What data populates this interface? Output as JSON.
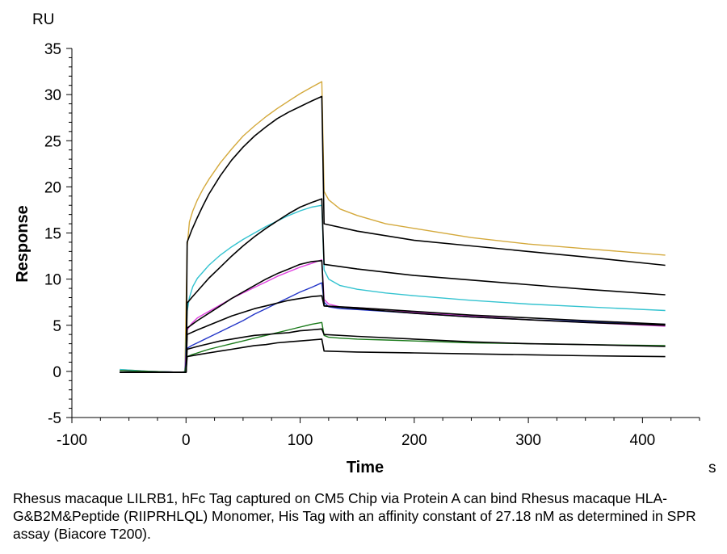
{
  "chart_data": {
    "type": "line",
    "title": "",
    "xlabel": "Time",
    "ylabel": "Response",
    "x_unit": "s",
    "y_unit": "RU",
    "xlim": [
      -100,
      450
    ],
    "ylim": [
      -5,
      35
    ],
    "x_ticks": [
      -100,
      0,
      100,
      200,
      300,
      400
    ],
    "y_ticks": [
      -5,
      0,
      5,
      10,
      15,
      20,
      25,
      30,
      35
    ],
    "grid": false,
    "legend": "none",
    "series": [
      {
        "color": "#d4a93c",
        "kind": "measured",
        "x": [
          -58,
          -30,
          -5,
          -1,
          1,
          3,
          6,
          10,
          15,
          20,
          30,
          40,
          50,
          60,
          70,
          80,
          90,
          100,
          110,
          119,
          121,
          125,
          135,
          150,
          175,
          200,
          250,
          300,
          350,
          420
        ],
        "y": [
          0.2,
          0.0,
          -0.1,
          -0.05,
          13.5,
          16.2,
          17.4,
          18.6,
          19.8,
          20.8,
          22.6,
          24.1,
          25.5,
          26.6,
          27.6,
          28.5,
          29.3,
          30.1,
          30.8,
          31.4,
          19.5,
          18.6,
          17.6,
          16.9,
          16.0,
          15.5,
          14.5,
          13.8,
          13.3,
          12.6
        ]
      },
      {
        "color": "#34c3d0",
        "kind": "measured",
        "x": [
          -58,
          -30,
          -5,
          -1,
          1,
          3,
          6,
          10,
          15,
          20,
          30,
          40,
          50,
          60,
          70,
          80,
          90,
          100,
          110,
          119,
          121,
          125,
          135,
          150,
          175,
          200,
          250,
          300,
          350,
          420
        ],
        "y": [
          0.2,
          0.0,
          -0.1,
          -0.05,
          6.5,
          8.0,
          9.2,
          10.1,
          10.8,
          11.5,
          12.6,
          13.5,
          14.3,
          15.0,
          15.7,
          16.3,
          16.9,
          17.4,
          17.8,
          18.0,
          11.0,
          10.0,
          9.3,
          8.9,
          8.5,
          8.2,
          7.7,
          7.3,
          7.0,
          6.6
        ]
      },
      {
        "color": "#e040e0",
        "kind": "measured",
        "x": [
          -58,
          -30,
          -5,
          -1,
          1,
          5,
          10,
          20,
          30,
          40,
          50,
          60,
          70,
          80,
          90,
          100,
          110,
          119,
          121,
          125,
          135,
          150,
          175,
          200,
          250,
          300,
          350,
          420
        ],
        "y": [
          0.1,
          0.0,
          -0.1,
          -0.05,
          4.5,
          5.2,
          5.8,
          6.5,
          7.2,
          7.9,
          8.5,
          9.1,
          9.7,
          10.3,
          10.8,
          11.3,
          11.7,
          12.1,
          7.8,
          7.3,
          7.0,
          6.9,
          6.7,
          6.4,
          6.0,
          5.6,
          5.3,
          4.9
        ]
      },
      {
        "color": "#2436c8",
        "kind": "measured",
        "x": [
          -58,
          -30,
          -5,
          -1,
          1,
          5,
          10,
          20,
          30,
          40,
          50,
          60,
          70,
          80,
          90,
          100,
          110,
          119,
          121,
          125,
          135,
          150,
          175,
          200,
          250,
          300,
          350,
          420
        ],
        "y": [
          0.1,
          0.0,
          -0.1,
          -0.05,
          2.5,
          2.8,
          3.1,
          3.7,
          4.3,
          4.9,
          5.5,
          6.2,
          6.8,
          7.4,
          8.0,
          8.6,
          9.1,
          9.6,
          7.5,
          7.0,
          6.8,
          6.7,
          6.5,
          6.3,
          5.9,
          5.6,
          5.4,
          5.1
        ]
      },
      {
        "color": "#1a7a1a",
        "kind": "measured",
        "x": [
          -58,
          -30,
          -5,
          -1,
          1,
          5,
          10,
          20,
          30,
          40,
          50,
          60,
          70,
          80,
          90,
          100,
          110,
          119,
          121,
          125,
          135,
          150,
          175,
          200,
          250,
          300,
          350,
          420
        ],
        "y": [
          0.1,
          0.0,
          -0.1,
          -0.05,
          1.6,
          1.8,
          2.0,
          2.4,
          2.7,
          3.0,
          3.3,
          3.6,
          3.9,
          4.2,
          4.5,
          4.8,
          5.1,
          5.3,
          3.9,
          3.7,
          3.6,
          3.5,
          3.4,
          3.3,
          3.1,
          3.0,
          2.9,
          2.8
        ]
      },
      {
        "color": "#000000",
        "kind": "fit",
        "x": [
          -58,
          -30,
          -5,
          0,
          1,
          5,
          10,
          15,
          20,
          30,
          40,
          50,
          60,
          70,
          80,
          90,
          100,
          110,
          119,
          121,
          150,
          200,
          250,
          300,
          350,
          420
        ],
        "y": [
          -0.1,
          -0.1,
          -0.1,
          -0.1,
          14.0,
          15.3,
          16.7,
          18.0,
          19.2,
          21.2,
          22.9,
          24.3,
          25.5,
          26.5,
          27.4,
          28.1,
          28.7,
          29.3,
          29.8,
          16.0,
          15.2,
          14.2,
          13.6,
          13.0,
          12.4,
          11.5
        ]
      },
      {
        "color": "#000000",
        "kind": "fit",
        "x": [
          -58,
          -30,
          -5,
          0,
          1,
          5,
          10,
          20,
          30,
          40,
          50,
          60,
          70,
          80,
          90,
          100,
          110,
          119,
          121,
          150,
          200,
          250,
          300,
          350,
          420
        ],
        "y": [
          -0.1,
          -0.1,
          -0.1,
          -0.1,
          7.4,
          8.0,
          8.7,
          10.1,
          11.3,
          12.5,
          13.6,
          14.6,
          15.5,
          16.3,
          17.1,
          17.8,
          18.3,
          18.7,
          11.6,
          11.1,
          10.4,
          9.9,
          9.4,
          8.9,
          8.3
        ]
      },
      {
        "color": "#000000",
        "kind": "fit",
        "x": [
          -58,
          -30,
          -5,
          0,
          1,
          10,
          20,
          30,
          40,
          50,
          60,
          70,
          80,
          90,
          100,
          110,
          119,
          121,
          150,
          200,
          250,
          300,
          350,
          420
        ],
        "y": [
          -0.1,
          -0.1,
          -0.1,
          -0.1,
          4.7,
          5.5,
          6.3,
          7.1,
          7.9,
          8.6,
          9.3,
          10.0,
          10.6,
          11.1,
          11.6,
          11.9,
          12.0,
          7.1,
          6.9,
          6.5,
          6.1,
          5.8,
          5.5,
          5.1
        ]
      },
      {
        "color": "#000000",
        "kind": "fit",
        "x": [
          -58,
          -30,
          -5,
          0,
          1,
          10,
          20,
          30,
          40,
          50,
          60,
          70,
          80,
          90,
          100,
          110,
          119,
          121,
          150,
          200,
          250,
          300,
          350,
          420
        ],
        "y": [
          -0.1,
          -0.1,
          -0.1,
          -0.1,
          4.0,
          4.5,
          5.0,
          5.5,
          6.0,
          6.4,
          6.8,
          7.1,
          7.4,
          7.7,
          7.9,
          8.1,
          8.2,
          7.1,
          6.8,
          6.3,
          5.9,
          5.6,
          5.3,
          5.0
        ]
      },
      {
        "color": "#000000",
        "kind": "fit",
        "x": [
          -58,
          -30,
          -5,
          0,
          1,
          10,
          20,
          30,
          40,
          50,
          60,
          70,
          80,
          90,
          100,
          110,
          119,
          121,
          150,
          200,
          250,
          300,
          350,
          420
        ],
        "y": [
          -0.1,
          -0.1,
          -0.1,
          -0.1,
          2.4,
          2.7,
          3.0,
          3.3,
          3.5,
          3.7,
          3.9,
          4.0,
          4.1,
          4.2,
          4.4,
          4.5,
          4.6,
          4.0,
          3.8,
          3.5,
          3.2,
          3.0,
          2.9,
          2.7
        ]
      },
      {
        "color": "#000000",
        "kind": "fit",
        "x": [
          -58,
          -30,
          -5,
          0,
          1,
          10,
          20,
          30,
          40,
          50,
          60,
          70,
          80,
          90,
          100,
          110,
          119,
          121,
          150,
          200,
          250,
          300,
          350,
          420
        ],
        "y": [
          -0.1,
          -0.1,
          -0.1,
          -0.1,
          1.6,
          1.8,
          2.0,
          2.2,
          2.4,
          2.6,
          2.8,
          2.9,
          3.1,
          3.2,
          3.3,
          3.4,
          3.5,
          2.2,
          2.1,
          2.0,
          1.9,
          1.8,
          1.7,
          1.6
        ]
      }
    ]
  },
  "caption": "Rhesus macaque LILRB1, hFc Tag captured on CM5 Chip via Protein A can bind Rhesus macaque HLA-G&B2M&Peptide (RIIPRHLQL) Monomer, His Tag with an affinity constant of 27.18 nM as determined in SPR assay (Biacore T200)."
}
